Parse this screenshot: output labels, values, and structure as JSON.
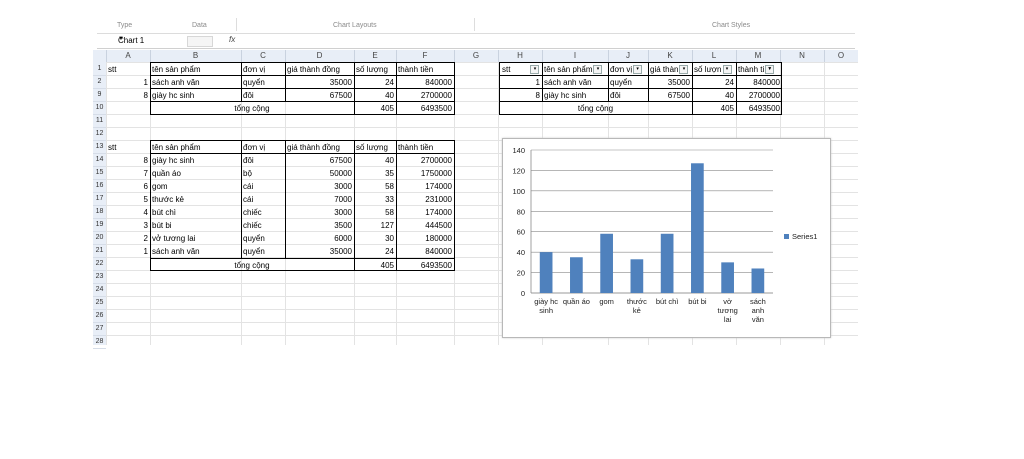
{
  "ribbon": {
    "type": "Type",
    "data": "Data",
    "chart_layouts": "Chart Layouts",
    "chart_styles": "Chart Styles"
  },
  "formula_bar": {
    "name_box": "Chart 1",
    "fx": "fx",
    "value": ""
  },
  "columns": [
    "A",
    "B",
    "C",
    "D",
    "E",
    "F",
    "G",
    "H",
    "I",
    "J",
    "K",
    "L",
    "M",
    "N",
    "O"
  ],
  "rows": [
    "1",
    "2",
    "9",
    "10",
    "11",
    "12",
    "13",
    "14",
    "15",
    "16",
    "17",
    "18",
    "19",
    "20",
    "21",
    "22",
    "23",
    "24",
    "25",
    "26",
    "27",
    "28"
  ],
  "top_table": {
    "headers": [
      "stt",
      "tên sản phẩm",
      "đơn vị",
      "giá thành đồng",
      "số lượng",
      "thành tiền"
    ],
    "rows": [
      [
        "1",
        "sách anh văn",
        "quyển",
        "35000",
        "24",
        "840000"
      ],
      [
        "8",
        "giày hc sinh",
        "đôi",
        "67500",
        "40",
        "2700000"
      ]
    ],
    "total_label": "tổng cộng",
    "total_qty": "405",
    "total_amount": "6493500"
  },
  "filtered_table": {
    "headers": [
      "stt",
      "tên sản phẩm",
      "đơn vị",
      "giá thàn",
      "số lượn",
      "thành ti"
    ],
    "rows": [
      [
        "1",
        "sách anh văn",
        "quyển",
        "35000",
        "24",
        "840000"
      ],
      [
        "8",
        "giày hc sinh",
        "đôi",
        "67500",
        "40",
        "2700000"
      ]
    ],
    "total_label": "tổng cộng",
    "total_qty": "405",
    "total_amount": "6493500"
  },
  "sorted_table": {
    "headers": [
      "stt",
      "tên sản phẩm",
      "đơn vị",
      "giá thành đồng",
      "số lượng",
      "thành tiền"
    ],
    "rows": [
      [
        "8",
        "giày hc sinh",
        "đôi",
        "67500",
        "40",
        "2700000"
      ],
      [
        "7",
        "quần áo",
        "bộ",
        "50000",
        "35",
        "1750000"
      ],
      [
        "6",
        "gom",
        "cái",
        "3000",
        "58",
        "174000"
      ],
      [
        "5",
        "thước kẻ",
        "cái",
        "7000",
        "33",
        "231000"
      ],
      [
        "4",
        "bút chì",
        "chiếc",
        "3000",
        "58",
        "174000"
      ],
      [
        "3",
        "bút bi",
        "chiếc",
        "3500",
        "127",
        "444500"
      ],
      [
        "2",
        "vở tương lai",
        "quyển",
        "6000",
        "30",
        "180000"
      ],
      [
        "1",
        "sách anh văn",
        "quyển",
        "35000",
        "24",
        "840000"
      ]
    ],
    "total_label": "tổng cộng",
    "total_qty": "405",
    "total_amount": "6493500"
  },
  "chart_data": {
    "type": "bar",
    "categories": [
      "giày hc sinh",
      "quần áo",
      "gom",
      "thước kẻ",
      "bút chì",
      "bút bi",
      "vở tương lai",
      "sách anh văn"
    ],
    "category_lines": [
      [
        "giày hc",
        "sinh"
      ],
      [
        "quần áo"
      ],
      [
        "gom"
      ],
      [
        "thước",
        "kẻ"
      ],
      [
        "bút chì"
      ],
      [
        "bút bi"
      ],
      [
        "vở",
        "tương",
        "lai"
      ],
      [
        "sách",
        "anh",
        "văn"
      ]
    ],
    "series": [
      {
        "name": "Series1",
        "values": [
          40,
          35,
          58,
          33,
          58,
          127,
          30,
          24
        ]
      }
    ],
    "ylim": [
      0,
      140
    ],
    "yticks": [
      "0",
      "20",
      "40",
      "60",
      "80",
      "100",
      "120",
      "140"
    ],
    "grid": true,
    "legend": "right",
    "bar_color": "#4f81bd"
  }
}
